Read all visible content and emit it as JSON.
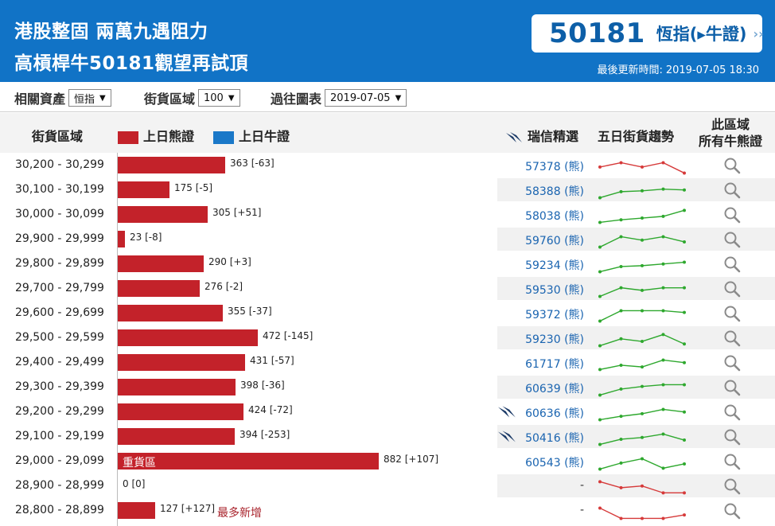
{
  "header": {
    "title_line1": "港股整固 兩萬九遇阻力",
    "title_line2": "高槓桿牛50181觀望再試頂",
    "quote_number": "50181",
    "quote_label": "恆指(▸牛證)",
    "quote_arrow": "››",
    "update_label": "最後更新時間:",
    "update_time": "2019-07-05 18:30"
  },
  "filters": {
    "asset_label": "相關資產",
    "asset_value": "恒指",
    "zone_label": "街貨區域",
    "zone_value": "100",
    "history_label": "過往圖表",
    "history_value": "2019-07-05"
  },
  "columns": {
    "zone": "街貨區域",
    "bear_legend": "上日熊證",
    "bull_legend": "上日牛證",
    "pick": "瑞信精選",
    "trend": "五日街貨趨勢",
    "all_line1": "此區域",
    "all_line2": "所有牛熊證"
  },
  "colors": {
    "header_blue": "#1173c6",
    "bear_red": "#c3222a",
    "bull_blue": "#1a78c8",
    "trend_up": "#2ea82e",
    "trend_down": "#d63a3a"
  },
  "rows": [
    {
      "range": "30,200 - 30,299",
      "value": 363,
      "label": "363 [-63]",
      "pick": "57378 (熊)",
      "icon": false,
      "trend": "down",
      "spark": [
        0.55,
        0.3,
        0.55,
        0.3,
        0.9
      ]
    },
    {
      "range": "30,100 - 30,199",
      "value": 175,
      "label": "175 [-5]",
      "pick": "58388 (熊)",
      "icon": false,
      "trend": "up",
      "spark": [
        0.9,
        0.55,
        0.5,
        0.4,
        0.45
      ]
    },
    {
      "range": "30,000 - 30,099",
      "value": 305,
      "label": "305 [+51]",
      "pick": "58038 (熊)",
      "icon": false,
      "trend": "up",
      "spark": [
        0.9,
        0.75,
        0.65,
        0.55,
        0.2
      ]
    },
    {
      "range": "29,900 - 29,999",
      "value": 23,
      "label": "23 [-8]",
      "pick": "59760 (熊)",
      "icon": false,
      "trend": "up",
      "spark": [
        0.9,
        0.3,
        0.5,
        0.3,
        0.6
      ]
    },
    {
      "range": "29,800 - 29,899",
      "value": 290,
      "label": "290 [+3]",
      "pick": "59234 (熊)",
      "icon": false,
      "trend": "up",
      "spark": [
        0.9,
        0.6,
        0.55,
        0.45,
        0.35
      ]
    },
    {
      "range": "29,700 - 29,799",
      "value": 276,
      "label": "276 [-2]",
      "pick": "59530 (熊)",
      "icon": false,
      "trend": "up",
      "spark": [
        0.9,
        0.4,
        0.55,
        0.4,
        0.4
      ]
    },
    {
      "range": "29,600 - 29,699",
      "value": 355,
      "label": "355 [-37]",
      "pick": "59372 (熊)",
      "icon": false,
      "trend": "up",
      "spark": [
        0.9,
        0.3,
        0.3,
        0.3,
        0.4
      ]
    },
    {
      "range": "29,500 - 29,599",
      "value": 472,
      "label": "472 [-145]",
      "pick": "59230 (熊)",
      "icon": false,
      "trend": "up",
      "spark": [
        0.9,
        0.5,
        0.65,
        0.25,
        0.8
      ]
    },
    {
      "range": "29,400 - 29,499",
      "value": 431,
      "label": "431 [-57]",
      "pick": "61717 (熊)",
      "icon": false,
      "trend": "up",
      "spark": [
        0.85,
        0.6,
        0.7,
        0.3,
        0.45
      ]
    },
    {
      "range": "29,300 - 29,399",
      "value": 398,
      "label": "398 [-36]",
      "pick": "60639 (熊)",
      "icon": false,
      "trend": "up",
      "spark": [
        0.9,
        0.55,
        0.4,
        0.3,
        0.3
      ]
    },
    {
      "range": "29,200 - 29,299",
      "value": 424,
      "label": "424 [-72]",
      "pick": "60636 (熊)",
      "icon": true,
      "trend": "up",
      "spark": [
        0.9,
        0.7,
        0.55,
        0.3,
        0.45
      ]
    },
    {
      "range": "29,100 - 29,199",
      "value": 394,
      "label": "394 [-253]",
      "pick": "50416 (熊)",
      "icon": true,
      "trend": "up",
      "spark": [
        0.9,
        0.6,
        0.5,
        0.3,
        0.65
      ]
    },
    {
      "range": "29,000 - 29,099",
      "value": 882,
      "label": "882 [+107]",
      "pick": "60543 (熊)",
      "icon": false,
      "trend": "up",
      "inner_label": "重貨區",
      "spark": [
        0.9,
        0.55,
        0.3,
        0.85,
        0.6
      ]
    },
    {
      "range": "28,900 - 28,999",
      "value": 0,
      "label": "0 [0]",
      "pick": "-",
      "icon": false,
      "trend": "down",
      "spark": [
        0.2,
        0.55,
        0.45,
        0.85,
        0.85
      ]
    },
    {
      "range": "28,800 - 28,899",
      "value": 127,
      "label": "127 [+127]",
      "pick": "-",
      "icon": false,
      "trend": "down",
      "note": "最多新增",
      "spark": [
        0.3,
        0.9,
        0.9,
        0.9,
        0.7
      ]
    }
  ]
}
